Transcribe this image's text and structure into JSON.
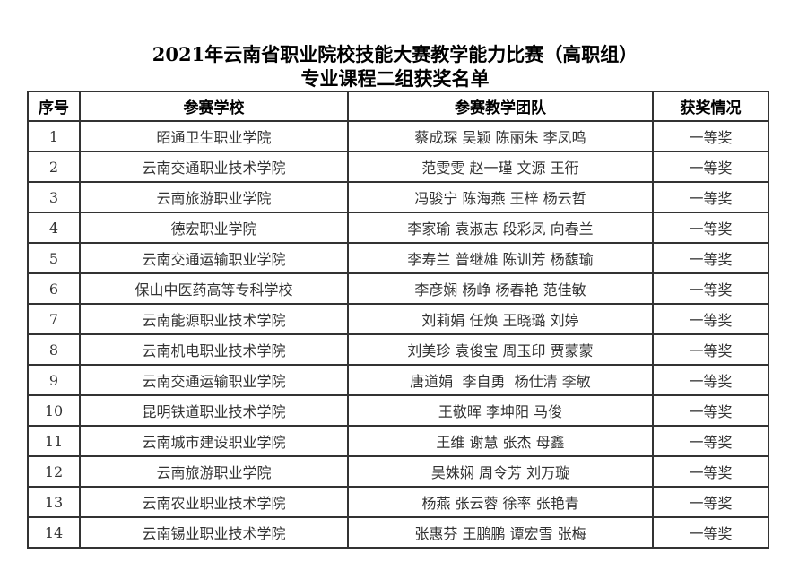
{
  "title": {
    "line1": "2021年云南省职业院校技能大赛教学能力比赛（高职组）",
    "line2": "专业课程二组获奖名单"
  },
  "headers": [
    "序号",
    "参赛学校",
    "参赛教学团队",
    "获奖情况"
  ],
  "rows": [
    [
      "1",
      "昭通卫生职业学院",
      "蔡成琛 吴颖 陈丽朱 李凤鸣",
      "一等奖"
    ],
    [
      "2",
      "云南交通职业技术学院",
      "范雯雯 赵一瑾 文源 王衎",
      "一等奖"
    ],
    [
      "3",
      "云南旅游职业学院",
      "冯骏宁 陈海燕 王梓 杨云哲",
      "一等奖"
    ],
    [
      "4",
      "德宏职业学院",
      "李家瑜 袁淑志 段彩凤 向春兰",
      "一等奖"
    ],
    [
      "5",
      "云南交通运输职业学院",
      "李寿兰 普继雄 陈训芳 杨馥瑜",
      "一等奖"
    ],
    [
      "6",
      "保山中医药高等专科学校",
      "李彦娴 杨峥 杨春艳 范佳敏",
      "一等奖"
    ],
    [
      "7",
      "云南能源职业技术学院",
      "刘莉娟 任焕 王晓璐 刘婷",
      "一等奖"
    ],
    [
      "8",
      "云南机电职业技术学院",
      "刘美珍 袁俊宝 周玉印 贾蒙蒙",
      "一等奖"
    ],
    [
      "9",
      "云南交通运输职业学院",
      "唐道娟  李自勇  杨仕清 李敏",
      "一等奖"
    ],
    [
      "10",
      "昆明铁道职业技术学院",
      "王敬晖 李坤阳 马俊",
      "一等奖"
    ],
    [
      "11",
      "云南城市建设职业学院",
      "王维 谢慧 张杰 母鑫",
      "一等奖"
    ],
    [
      "12",
      "云南旅游职业学院",
      "吴姝娴 周令芳 刘万璇",
      "一等奖"
    ],
    [
      "13",
      "云南农业职业技术学院",
      "杨燕 张云蓉 徐率 张艳青",
      "一等奖"
    ],
    [
      "14",
      "云南锡业职业技术学院",
      "张惠芬 王鹏鹏 谭宏雪 张梅",
      "一等奖"
    ]
  ]
}
